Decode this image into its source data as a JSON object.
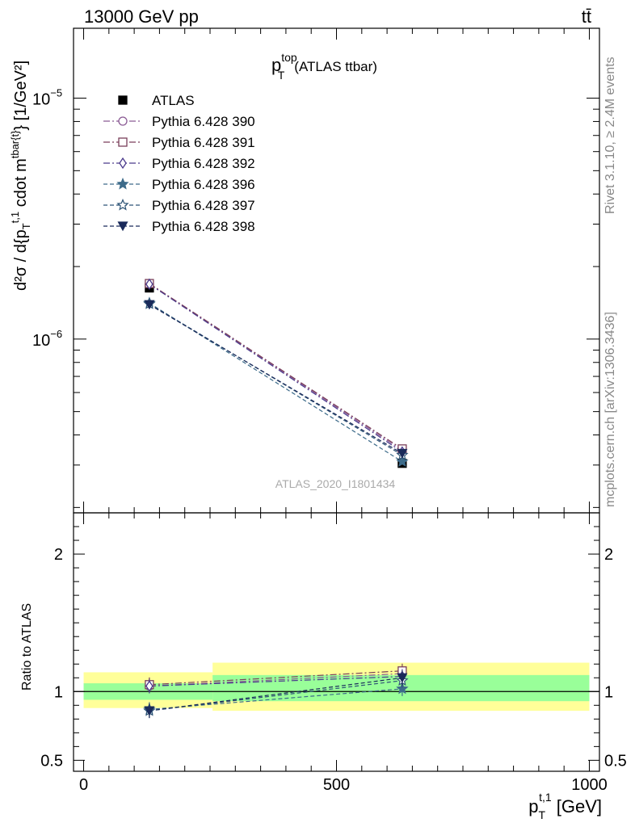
{
  "header": {
    "energy": "13000 GeV pp",
    "process": "tt̄"
  },
  "side_labels": {
    "rivet": "Rivet 3.1.10, ≥ 2.4M events",
    "source": "mcplots.cern.ch [arXiv:1306.3436]"
  },
  "chart_data": {
    "type": "line",
    "title": "p_T^top (ATLAS ttbar)",
    "title_main": "p",
    "title_sub": "T",
    "title_sup": "top",
    "title_rest": "(ATLAS ttbar)",
    "analysis_label": "ATLAS_2020_I1801434",
    "x_scale": "linear",
    "xlim": [
      -20,
      1020
    ],
    "xticks": [
      0,
      500,
      1000
    ],
    "xtick_labels": [
      "0",
      "500",
      "1000"
    ],
    "xlabel": "p_T^{t,1} [GeV]",
    "upper": {
      "y_scale": "log",
      "ylim": [
        1.9e-07,
        1.95e-05
      ],
      "ytick_labels": [
        {
          "value": 1e-05,
          "base": "10",
          "exp": "−5"
        },
        {
          "value": 1e-06,
          "base": "10",
          "exp": "−6"
        }
      ],
      "ylabel": "d²σ / d{p_T^{t,1} cdot m^{tbar{t}}} [1/GeV²]",
      "legend_position": "top-left",
      "series": [
        {
          "name": "ATLAS",
          "color": "#000000",
          "marker": "square-filled",
          "dash": "none",
          "x": [
            130,
            630
          ],
          "y": [
            1.63e-06,
            3.05e-07
          ]
        },
        {
          "name": "Pythia 6.428 390",
          "color": "#8a5a94",
          "marker": "circle-open",
          "dash": "dashdot",
          "x": [
            130,
            630
          ],
          "y": [
            1.7e-06,
            3.45e-07
          ]
        },
        {
          "name": "Pythia 6.428 391",
          "color": "#7a3f5a",
          "marker": "square-open",
          "dash": "dashdot",
          "x": [
            130,
            630
          ],
          "y": [
            1.7e-06,
            3.5e-07
          ]
        },
        {
          "name": "Pythia 6.428 392",
          "color": "#4b3a8c",
          "marker": "diamond-open",
          "dash": "dashdot",
          "x": [
            130,
            630
          ],
          "y": [
            1.69e-06,
            3.4e-07
          ]
        },
        {
          "name": "Pythia 6.428 396",
          "color": "#3d6b8a",
          "marker": "star-filled",
          "dash": "dashed",
          "x": [
            130,
            630
          ],
          "y": [
            1.41e-06,
            3.1e-07
          ]
        },
        {
          "name": "Pythia 6.428 397",
          "color": "#2f5577",
          "marker": "star-open",
          "dash": "dashed",
          "x": [
            130,
            630
          ],
          "y": [
            1.4e-06,
            3.3e-07
          ]
        },
        {
          "name": "Pythia 6.428 398",
          "color": "#1a2a5a",
          "marker": "triangle-down-filled",
          "dash": "dashed",
          "x": [
            130,
            630
          ],
          "y": [
            1.39e-06,
            3.35e-07
          ]
        }
      ]
    },
    "ratio": {
      "y_scale": "linear",
      "ylim": [
        0.42,
        2.3
      ],
      "yticks": [
        0.5,
        1,
        2
      ],
      "ytick_labels": [
        "0.5",
        "1",
        "2"
      ],
      "ylabel": "Ratio to ATLAS",
      "bands": [
        {
          "x0": 0,
          "x1": 255,
          "inner": [
            0.94,
            1.06
          ],
          "outer": [
            0.88,
            1.14
          ]
        },
        {
          "x0": 255,
          "x1": 1000,
          "inner": [
            0.93,
            1.12
          ],
          "outer": [
            0.86,
            1.21
          ]
        }
      ],
      "band_colors": {
        "inner": "#99ff99",
        "outer": "#ffff99"
      },
      "series": [
        {
          "name": "Pythia 6.428 390",
          "x": [
            130,
            630
          ],
          "y": [
            1.04,
            1.13
          ]
        },
        {
          "name": "Pythia 6.428 391",
          "x": [
            130,
            630
          ],
          "y": [
            1.05,
            1.15
          ]
        },
        {
          "name": "Pythia 6.428 392",
          "x": [
            130,
            630
          ],
          "y": [
            1.04,
            1.11
          ]
        },
        {
          "name": "Pythia 6.428 396",
          "x": [
            130,
            630
          ],
          "y": [
            0.87,
            1.02
          ]
        },
        {
          "name": "Pythia 6.428 397",
          "x": [
            130,
            630
          ],
          "y": [
            0.86,
            1.08
          ]
        },
        {
          "name": "Pythia 6.428 398",
          "x": [
            130,
            630
          ],
          "y": [
            0.86,
            1.1
          ]
        }
      ]
    }
  }
}
